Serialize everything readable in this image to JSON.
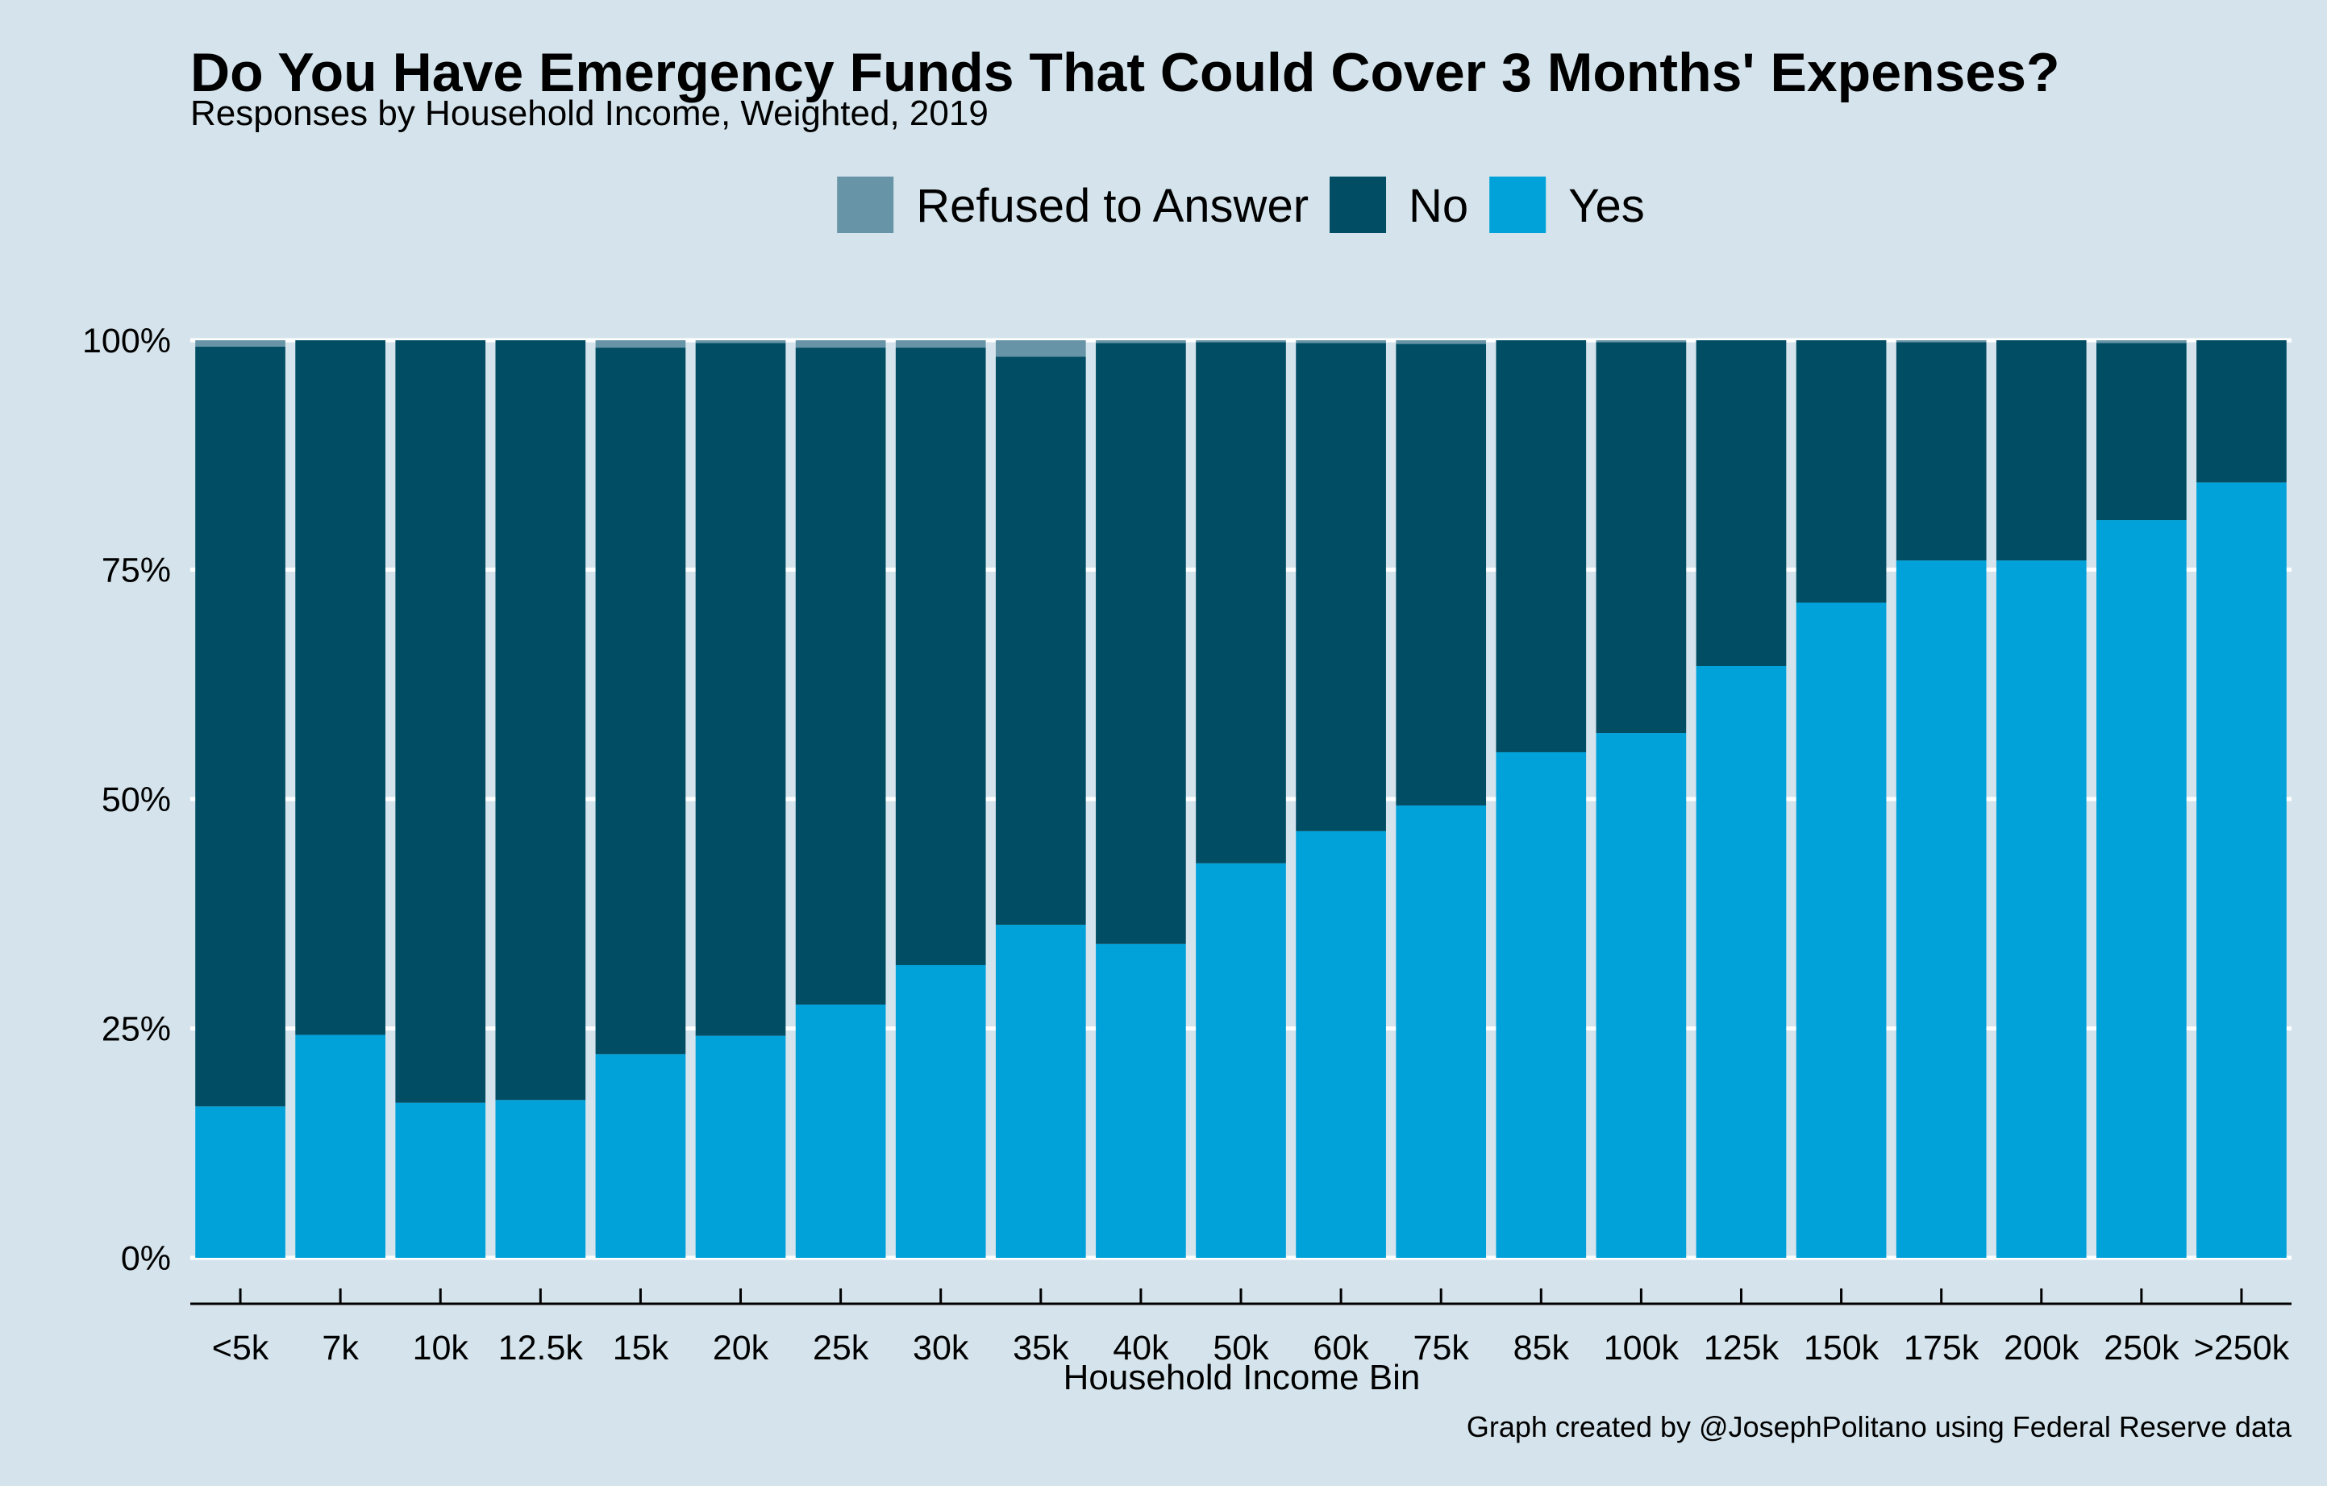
{
  "chart_data": {
    "type": "bar",
    "stacked": true,
    "percent_stacked": true,
    "title": "Do You Have Emergency Funds That Could Cover 3 Months' Expenses?",
    "subtitle": "Responses by Household Income, Weighted, 2019",
    "xlabel": "Household Income Bin",
    "ylabel": "",
    "caption": "Graph created by @JosephPolitano using Federal Reserve data",
    "categories": [
      "<5k",
      "7k",
      "10k",
      "12.5k",
      "15k",
      "20k",
      "25k",
      "30k",
      "35k",
      "40k",
      "50k",
      "60k",
      "75k",
      "85k",
      "100k",
      "125k",
      "150k",
      "175k",
      "200k",
      "250k",
      ">250k"
    ],
    "series": [
      {
        "name": "Yes",
        "color": "#00a2d9",
        "values": [
          16.5,
          24.3,
          16.9,
          17.2,
          22.2,
          24.2,
          27.6,
          31.9,
          36.3,
          34.2,
          43.0,
          46.5,
          49.3,
          55.1,
          57.2,
          64.5,
          71.4,
          76.0,
          76.0,
          80.4,
          84.5
        ]
      },
      {
        "name": "No",
        "color": "#014d64",
        "values": [
          82.8,
          75.7,
          83.1,
          82.8,
          77.0,
          75.5,
          71.6,
          67.3,
          61.9,
          65.5,
          56.8,
          53.2,
          50.3,
          44.9,
          42.6,
          35.5,
          28.6,
          23.8,
          24.0,
          19.3,
          15.5
        ]
      },
      {
        "name": "Refused to Answer",
        "color": "#6794a7",
        "values": [
          0.7,
          0.0,
          0.0,
          0.0,
          0.8,
          0.3,
          0.8,
          0.8,
          1.8,
          0.3,
          0.2,
          0.3,
          0.4,
          0.0,
          0.2,
          0.0,
          0.0,
          0.2,
          0.0,
          0.3,
          0.0
        ]
      }
    ],
    "legend_order": [
      "Refused to Answer",
      "No",
      "Yes"
    ],
    "legend_position": "top",
    "ylim": [
      0,
      100
    ],
    "yticks": [
      "0%",
      "25%",
      "50%",
      "75%",
      "100%"
    ],
    "ytick_values": [
      0,
      25,
      50,
      75,
      100
    ],
    "grid": "horizontal",
    "colors": {
      "background": "#d5e4ec",
      "gridline": "#ffffff",
      "axis": "#000000"
    }
  }
}
